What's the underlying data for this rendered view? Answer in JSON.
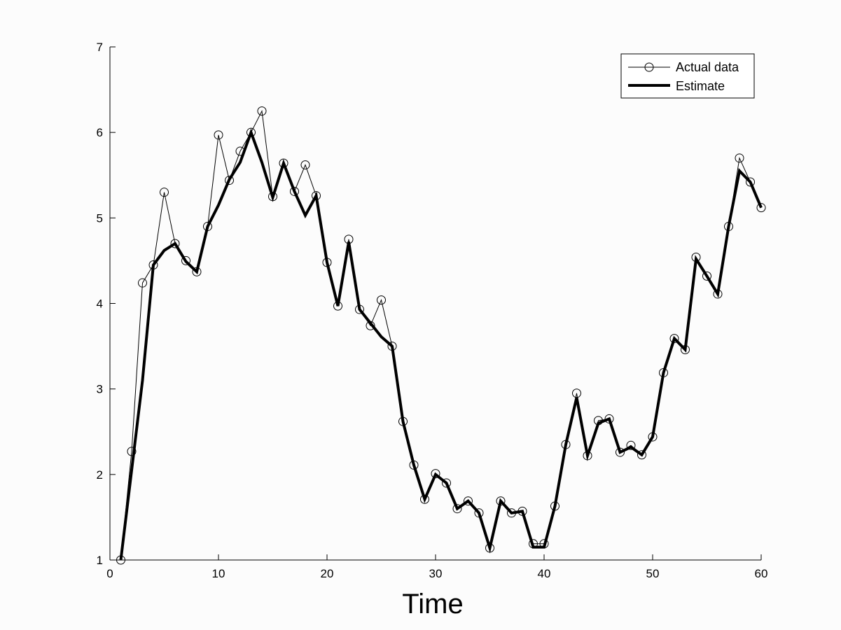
{
  "chart_data": {
    "type": "line",
    "title": "",
    "xlabel": "Time",
    "ylabel": "",
    "xlim": [
      0,
      60
    ],
    "ylim": [
      1,
      7
    ],
    "xticks": [
      0,
      10,
      20,
      30,
      40,
      50,
      60
    ],
    "yticks": [
      1,
      2,
      3,
      4,
      5,
      6,
      7
    ],
    "grid": false,
    "legend_position": "top-right",
    "x": [
      1,
      2,
      3,
      4,
      5,
      6,
      7,
      8,
      9,
      10,
      11,
      12,
      13,
      14,
      15,
      16,
      17,
      18,
      19,
      20,
      21,
      22,
      23,
      24,
      25,
      26,
      27,
      28,
      29,
      30,
      31,
      32,
      33,
      34,
      35,
      36,
      37,
      38,
      39,
      40,
      41,
      42,
      43,
      44,
      45,
      46,
      47,
      48,
      49,
      50,
      51,
      52,
      53,
      54,
      55,
      56,
      57,
      58,
      59,
      60
    ],
    "series": [
      {
        "name": "Actual data",
        "style": "thin-line-circle-markers",
        "values": [
          1.0,
          2.27,
          4.24,
          4.45,
          5.3,
          4.7,
          4.5,
          4.37,
          4.9,
          5.97,
          5.44,
          5.78,
          6.0,
          6.25,
          5.25,
          5.64,
          5.31,
          5.62,
          5.26,
          4.48,
          3.97,
          4.75,
          3.93,
          3.74,
          4.04,
          3.5,
          2.62,
          2.11,
          1.71,
          2.01,
          1.9,
          1.6,
          1.69,
          1.55,
          1.14,
          1.69,
          1.55,
          1.57,
          1.19,
          1.19,
          1.63,
          2.35,
          2.95,
          2.22,
          2.63,
          2.65,
          2.26,
          2.34,
          2.23,
          2.44,
          3.19,
          3.59,
          3.46,
          4.54,
          4.32,
          4.11,
          4.9,
          5.7,
          5.42,
          5.12
        ]
      },
      {
        "name": "Estimate",
        "style": "thick-line",
        "values": [
          1.0,
          2.05,
          3.1,
          4.45,
          4.62,
          4.7,
          4.49,
          4.37,
          4.9,
          5.15,
          5.45,
          5.65,
          6.0,
          5.65,
          5.24,
          5.64,
          5.31,
          5.03,
          5.26,
          4.48,
          3.97,
          4.72,
          3.93,
          3.77,
          3.61,
          3.5,
          2.62,
          2.11,
          1.71,
          2.0,
          1.9,
          1.6,
          1.69,
          1.55,
          1.14,
          1.69,
          1.55,
          1.57,
          1.15,
          1.15,
          1.63,
          2.35,
          2.9,
          2.22,
          2.6,
          2.65,
          2.26,
          2.32,
          2.23,
          2.44,
          3.19,
          3.59,
          3.46,
          4.52,
          4.32,
          4.11,
          4.9,
          5.55,
          5.42,
          5.12
        ]
      }
    ]
  }
}
